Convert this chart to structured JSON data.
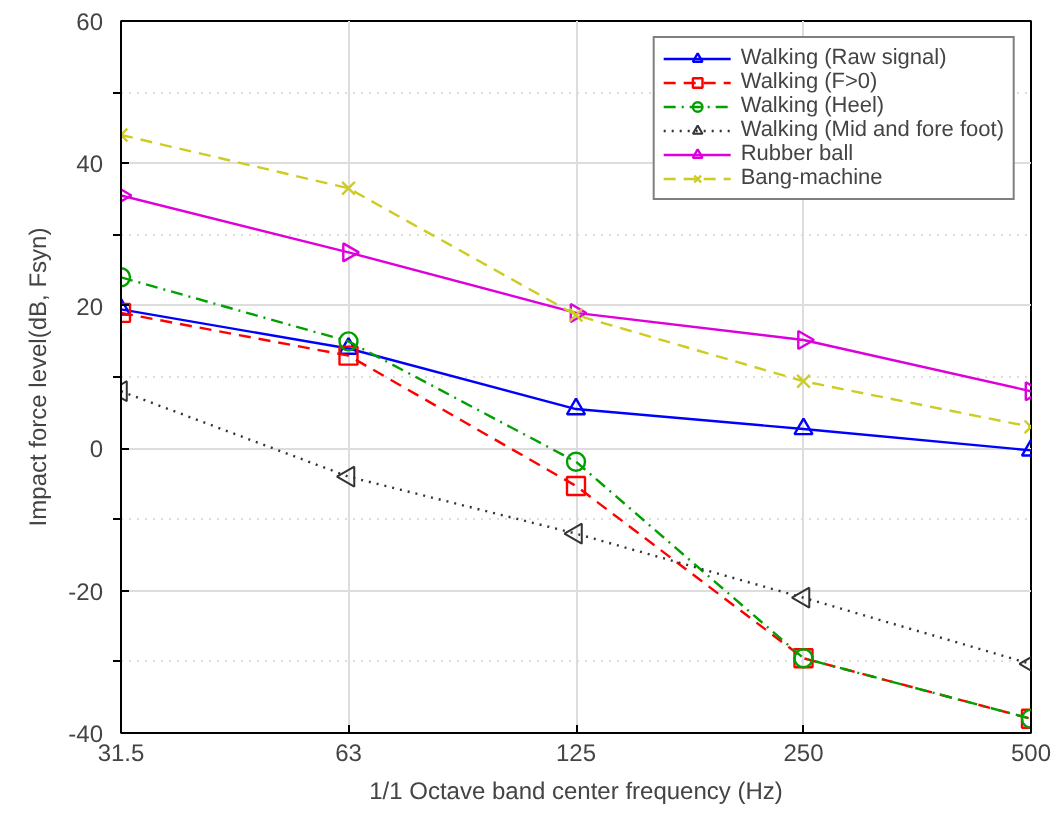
{
  "chart_data": {
    "type": "line",
    "xlabel": "1/1 Octave band center frequency (Hz)",
    "ylabel": "Impact force level(dB, Fsyn)",
    "categories": [
      "31.5",
      "63",
      "125",
      "250",
      "500"
    ],
    "ylim": [
      -40,
      60
    ],
    "yticks": [
      -40,
      -20,
      0,
      20,
      40,
      60
    ],
    "grid": true,
    "legend": "top right",
    "series": [
      {
        "name": "Walking (Raw signal)",
        "color": "#0000ff",
        "marker": "triangle",
        "line_style": "solid",
        "values": [
          19.5,
          14,
          5.5,
          2.7,
          -0.3
        ]
      },
      {
        "name": "Walking (F>0)",
        "color": "#ff0000",
        "marker": "square",
        "line_style": "dashed",
        "values": [
          19,
          13,
          -5.3,
          -29.5,
          -38
        ]
      },
      {
        "name": "Walking (Heel)",
        "color": "#00a000",
        "marker": "circle",
        "line_style": "dashdot",
        "values": [
          24,
          15,
          -1.9,
          -29.5,
          -38
        ]
      },
      {
        "name": "Walking (Mid and fore foot)",
        "color": "#333333",
        "marker": "triangle_left",
        "line_style": "dotted",
        "values": [
          8,
          -4,
          -12,
          -21,
          -30.3
        ]
      },
      {
        "name": "Rubber ball",
        "color": "#dd00dd",
        "marker": "triangle_right",
        "line_style": "solid",
        "values": [
          35.5,
          27.5,
          19,
          15.2,
          8
        ]
      },
      {
        "name": "Bang-machine",
        "color": "#cccc22",
        "marker": "x",
        "line_style": "dashed",
        "values": [
          44,
          36.5,
          18.7,
          9.4,
          3
        ]
      }
    ]
  }
}
